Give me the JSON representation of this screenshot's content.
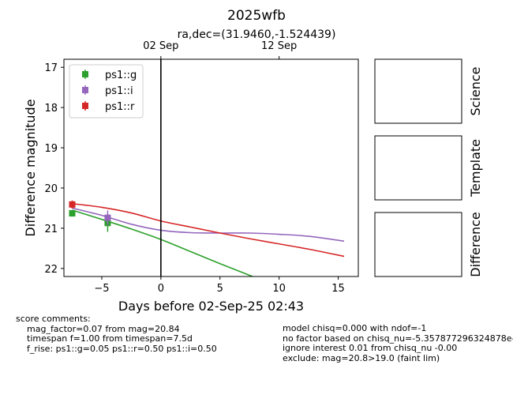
{
  "chart_data": {
    "type": "scatter",
    "title": "2025wfb",
    "subtitle": "ra,dec=(31.9460,-1.524439)",
    "xlabel": "Days before 02-Sep-25 02:43",
    "ylabel": "Difference magnitude",
    "xlim": [
      -8.2,
      16.7
    ],
    "ylim": [
      22.2,
      16.8
    ],
    "y_inverted": true,
    "x_ticks": [
      -5,
      0,
      5,
      10,
      15
    ],
    "x_tick_labels": [
      "−5",
      "0",
      "5",
      "10",
      "15"
    ],
    "y_ticks": [
      17,
      18,
      19,
      20,
      21,
      22
    ],
    "y_tick_labels": [
      "17",
      "18",
      "19",
      "20",
      "21",
      "22"
    ],
    "top_axis": {
      "ticks": [
        0,
        10
      ],
      "labels": [
        "02 Sep",
        "12 Sep"
      ]
    },
    "vline_x": 0,
    "grid": false,
    "legend_position": "top-left",
    "series": [
      {
        "name": "ps1::g",
        "color": "#2ca02c",
        "points": [
          {
            "x": -7.5,
            "y": 20.63,
            "err": 0.08
          },
          {
            "x": -4.5,
            "y": 20.87,
            "err": 0.22
          }
        ],
        "curve": {
          "x": [
            -7.5,
            -5,
            -2.5,
            0,
            2.5,
            5,
            7.5,
            8.2
          ],
          "y": [
            20.55,
            20.78,
            21.02,
            21.28,
            21.58,
            21.88,
            22.17,
            22.25
          ]
        }
      },
      {
        "name": "ps1::i",
        "color": "#9467bd",
        "points": [
          {
            "x": -4.5,
            "y": 20.74,
            "err": 0.18
          }
        ],
        "curve": {
          "x": [
            -7.5,
            -5,
            -2.5,
            0,
            2.5,
            5,
            7.5,
            10,
            12.5,
            15.5
          ],
          "y": [
            20.5,
            20.68,
            20.9,
            21.05,
            21.11,
            21.12,
            21.12,
            21.15,
            21.2,
            21.32
          ]
        }
      },
      {
        "name": "ps1::r",
        "color": "#d62728",
        "points": [
          {
            "x": -7.5,
            "y": 20.41,
            "err": 0.1
          }
        ],
        "curve": {
          "x": [
            -7.5,
            -5,
            -2.5,
            0,
            2.5,
            5,
            7.5,
            10,
            12.5,
            15.5
          ],
          "y": [
            20.39,
            20.48,
            20.62,
            20.82,
            20.97,
            21.12,
            21.26,
            21.39,
            21.52,
            21.7
          ]
        }
      }
    ],
    "side_panels": [
      "Science",
      "Template",
      "Difference"
    ]
  },
  "comments": {
    "heading": "score comments:",
    "left": [
      "mag_factor=0.07 from mag=20.84",
      "timespan f=1.00 from timespan=7.5d",
      "f_rise: ps1::g=0.05 ps1::r=0.50 ps1::i=0.50"
    ],
    "right": [
      "model chisq=0.000 with ndof=-1",
      "no factor based on chisq_nu=-5.357877296324878e-",
      "ignore interest 0.01 from chisq_nu -0.00",
      "exclude: mag=20.8>19.0 (faint lim)"
    ]
  }
}
